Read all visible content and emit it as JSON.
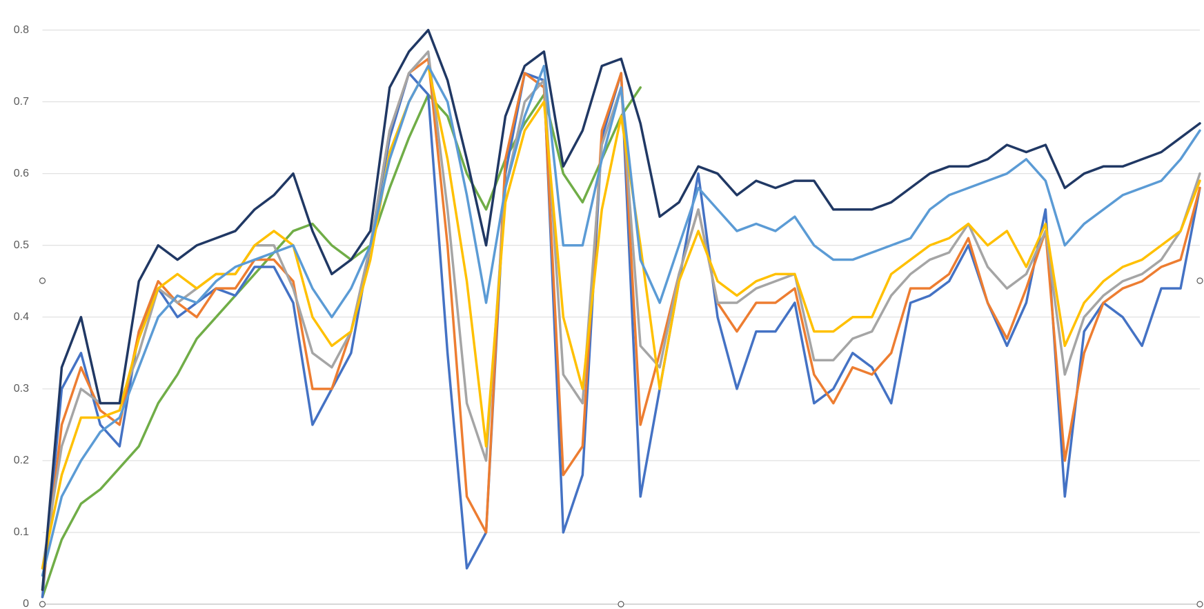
{
  "chart_data": {
    "type": "line",
    "ylim": [
      0,
      0.8
    ],
    "yticks": [
      0,
      0.1,
      0.2,
      0.3,
      0.4,
      0.5,
      0.6,
      0.7,
      0.8
    ],
    "grid": true,
    "series": [
      {
        "color": "#70ad47",
        "values": [
          0.01,
          0.09,
          0.14,
          0.16,
          0.19,
          0.22,
          0.28,
          0.32,
          0.37,
          0.4,
          0.43,
          0.46,
          0.49,
          0.52,
          0.53,
          0.5,
          0.48,
          0.5,
          0.58,
          0.65,
          0.71,
          0.68,
          0.6,
          0.55,
          0.62,
          0.67,
          0.71,
          0.6,
          0.56,
          0.62,
          0.68,
          0.72,
          null,
          null,
          null,
          null,
          null,
          null,
          null,
          null,
          null,
          null,
          null,
          null,
          null,
          null,
          null,
          null,
          null,
          null,
          null,
          null,
          null,
          null,
          null,
          null,
          null,
          null,
          null,
          null,
          null
        ]
      },
      {
        "color": "#4472c4",
        "values": [
          0.01,
          0.3,
          0.35,
          0.25,
          0.22,
          0.38,
          0.44,
          0.4,
          0.42,
          0.44,
          0.43,
          0.47,
          0.47,
          0.42,
          0.25,
          0.3,
          0.35,
          0.5,
          0.65,
          0.74,
          0.71,
          0.35,
          0.05,
          0.1,
          0.6,
          0.74,
          0.73,
          0.1,
          0.18,
          0.65,
          0.74,
          0.15,
          0.3,
          0.45,
          0.6,
          0.4,
          0.3,
          0.38,
          0.38,
          0.42,
          0.28,
          0.3,
          0.35,
          0.33,
          0.28,
          0.42,
          0.43,
          0.45,
          0.5,
          0.42,
          0.36,
          0.42,
          0.55,
          0.15,
          0.38,
          0.42,
          0.4,
          0.36,
          0.44,
          0.44,
          0.58
        ]
      },
      {
        "color": "#ed7d31",
        "values": [
          0.02,
          0.25,
          0.33,
          0.27,
          0.25,
          0.38,
          0.45,
          0.42,
          0.4,
          0.44,
          0.44,
          0.48,
          0.48,
          0.45,
          0.3,
          0.3,
          0.38,
          0.5,
          0.66,
          0.74,
          0.76,
          0.5,
          0.15,
          0.1,
          0.62,
          0.74,
          0.72,
          0.18,
          0.22,
          0.66,
          0.74,
          0.25,
          0.35,
          0.46,
          0.55,
          0.42,
          0.38,
          0.42,
          0.42,
          0.44,
          0.32,
          0.28,
          0.33,
          0.32,
          0.35,
          0.44,
          0.44,
          0.46,
          0.51,
          0.42,
          0.37,
          0.44,
          0.52,
          0.2,
          0.35,
          0.42,
          0.44,
          0.45,
          0.47,
          0.48,
          0.58
        ]
      },
      {
        "color": "#a5a5a5",
        "values": [
          0.05,
          0.22,
          0.3,
          0.28,
          0.28,
          0.35,
          0.44,
          0.42,
          0.44,
          0.46,
          0.46,
          0.5,
          0.5,
          0.44,
          0.35,
          0.33,
          0.38,
          0.5,
          0.66,
          0.74,
          0.77,
          0.55,
          0.28,
          0.2,
          0.58,
          0.7,
          0.73,
          0.32,
          0.28,
          0.64,
          0.72,
          0.36,
          0.33,
          0.46,
          0.55,
          0.42,
          0.42,
          0.44,
          0.45,
          0.46,
          0.34,
          0.34,
          0.37,
          0.38,
          0.43,
          0.46,
          0.48,
          0.49,
          0.53,
          0.47,
          0.44,
          0.46,
          0.52,
          0.32,
          0.4,
          0.43,
          0.45,
          0.46,
          0.48,
          0.52,
          0.6
        ]
      },
      {
        "color": "#ffc000",
        "values": [
          0.05,
          0.18,
          0.26,
          0.26,
          0.27,
          0.37,
          0.44,
          0.46,
          0.44,
          0.46,
          0.46,
          0.5,
          0.52,
          0.5,
          0.4,
          0.36,
          0.38,
          0.48,
          0.63,
          0.7,
          0.75,
          0.62,
          0.45,
          0.22,
          0.56,
          0.66,
          0.7,
          0.4,
          0.3,
          0.55,
          0.68,
          0.5,
          0.3,
          0.45,
          0.52,
          0.45,
          0.43,
          0.45,
          0.46,
          0.46,
          0.38,
          0.38,
          0.4,
          0.4,
          0.46,
          0.48,
          0.5,
          0.51,
          0.53,
          0.5,
          0.52,
          0.47,
          0.53,
          0.36,
          0.42,
          0.45,
          0.47,
          0.48,
          0.5,
          0.52,
          0.59
        ]
      },
      {
        "color": "#5b9bd5",
        "values": [
          0.04,
          0.15,
          0.2,
          0.24,
          0.26,
          0.33,
          0.4,
          0.43,
          0.42,
          0.45,
          0.47,
          0.48,
          0.49,
          0.5,
          0.44,
          0.4,
          0.44,
          0.5,
          0.62,
          0.7,
          0.75,
          0.7,
          0.57,
          0.42,
          0.58,
          0.68,
          0.75,
          0.5,
          0.5,
          0.62,
          0.72,
          0.48,
          0.42,
          0.5,
          0.58,
          0.55,
          0.52,
          0.53,
          0.52,
          0.54,
          0.5,
          0.48,
          0.48,
          0.49,
          0.5,
          0.51,
          0.55,
          0.57,
          0.58,
          0.59,
          0.6,
          0.62,
          0.59,
          0.5,
          0.53,
          0.55,
          0.57,
          0.58,
          0.59,
          0.62,
          0.66
        ]
      },
      {
        "color": "#203864",
        "values": [
          0.02,
          0.33,
          0.4,
          0.28,
          0.28,
          0.45,
          0.5,
          0.48,
          0.5,
          0.51,
          0.52,
          0.55,
          0.57,
          0.6,
          0.52,
          0.46,
          0.48,
          0.52,
          0.72,
          0.77,
          0.8,
          0.73,
          0.62,
          0.5,
          0.68,
          0.75,
          0.77,
          0.61,
          0.66,
          0.75,
          0.76,
          0.67,
          0.54,
          0.56,
          0.61,
          0.6,
          0.57,
          0.59,
          0.58,
          0.59,
          0.59,
          0.55,
          0.55,
          0.55,
          0.56,
          0.58,
          0.6,
          0.61,
          0.61,
          0.62,
          0.64,
          0.63,
          0.64,
          0.58,
          0.6,
          0.61,
          0.61,
          0.62,
          0.63,
          0.65,
          0.67
        ]
      }
    ]
  }
}
